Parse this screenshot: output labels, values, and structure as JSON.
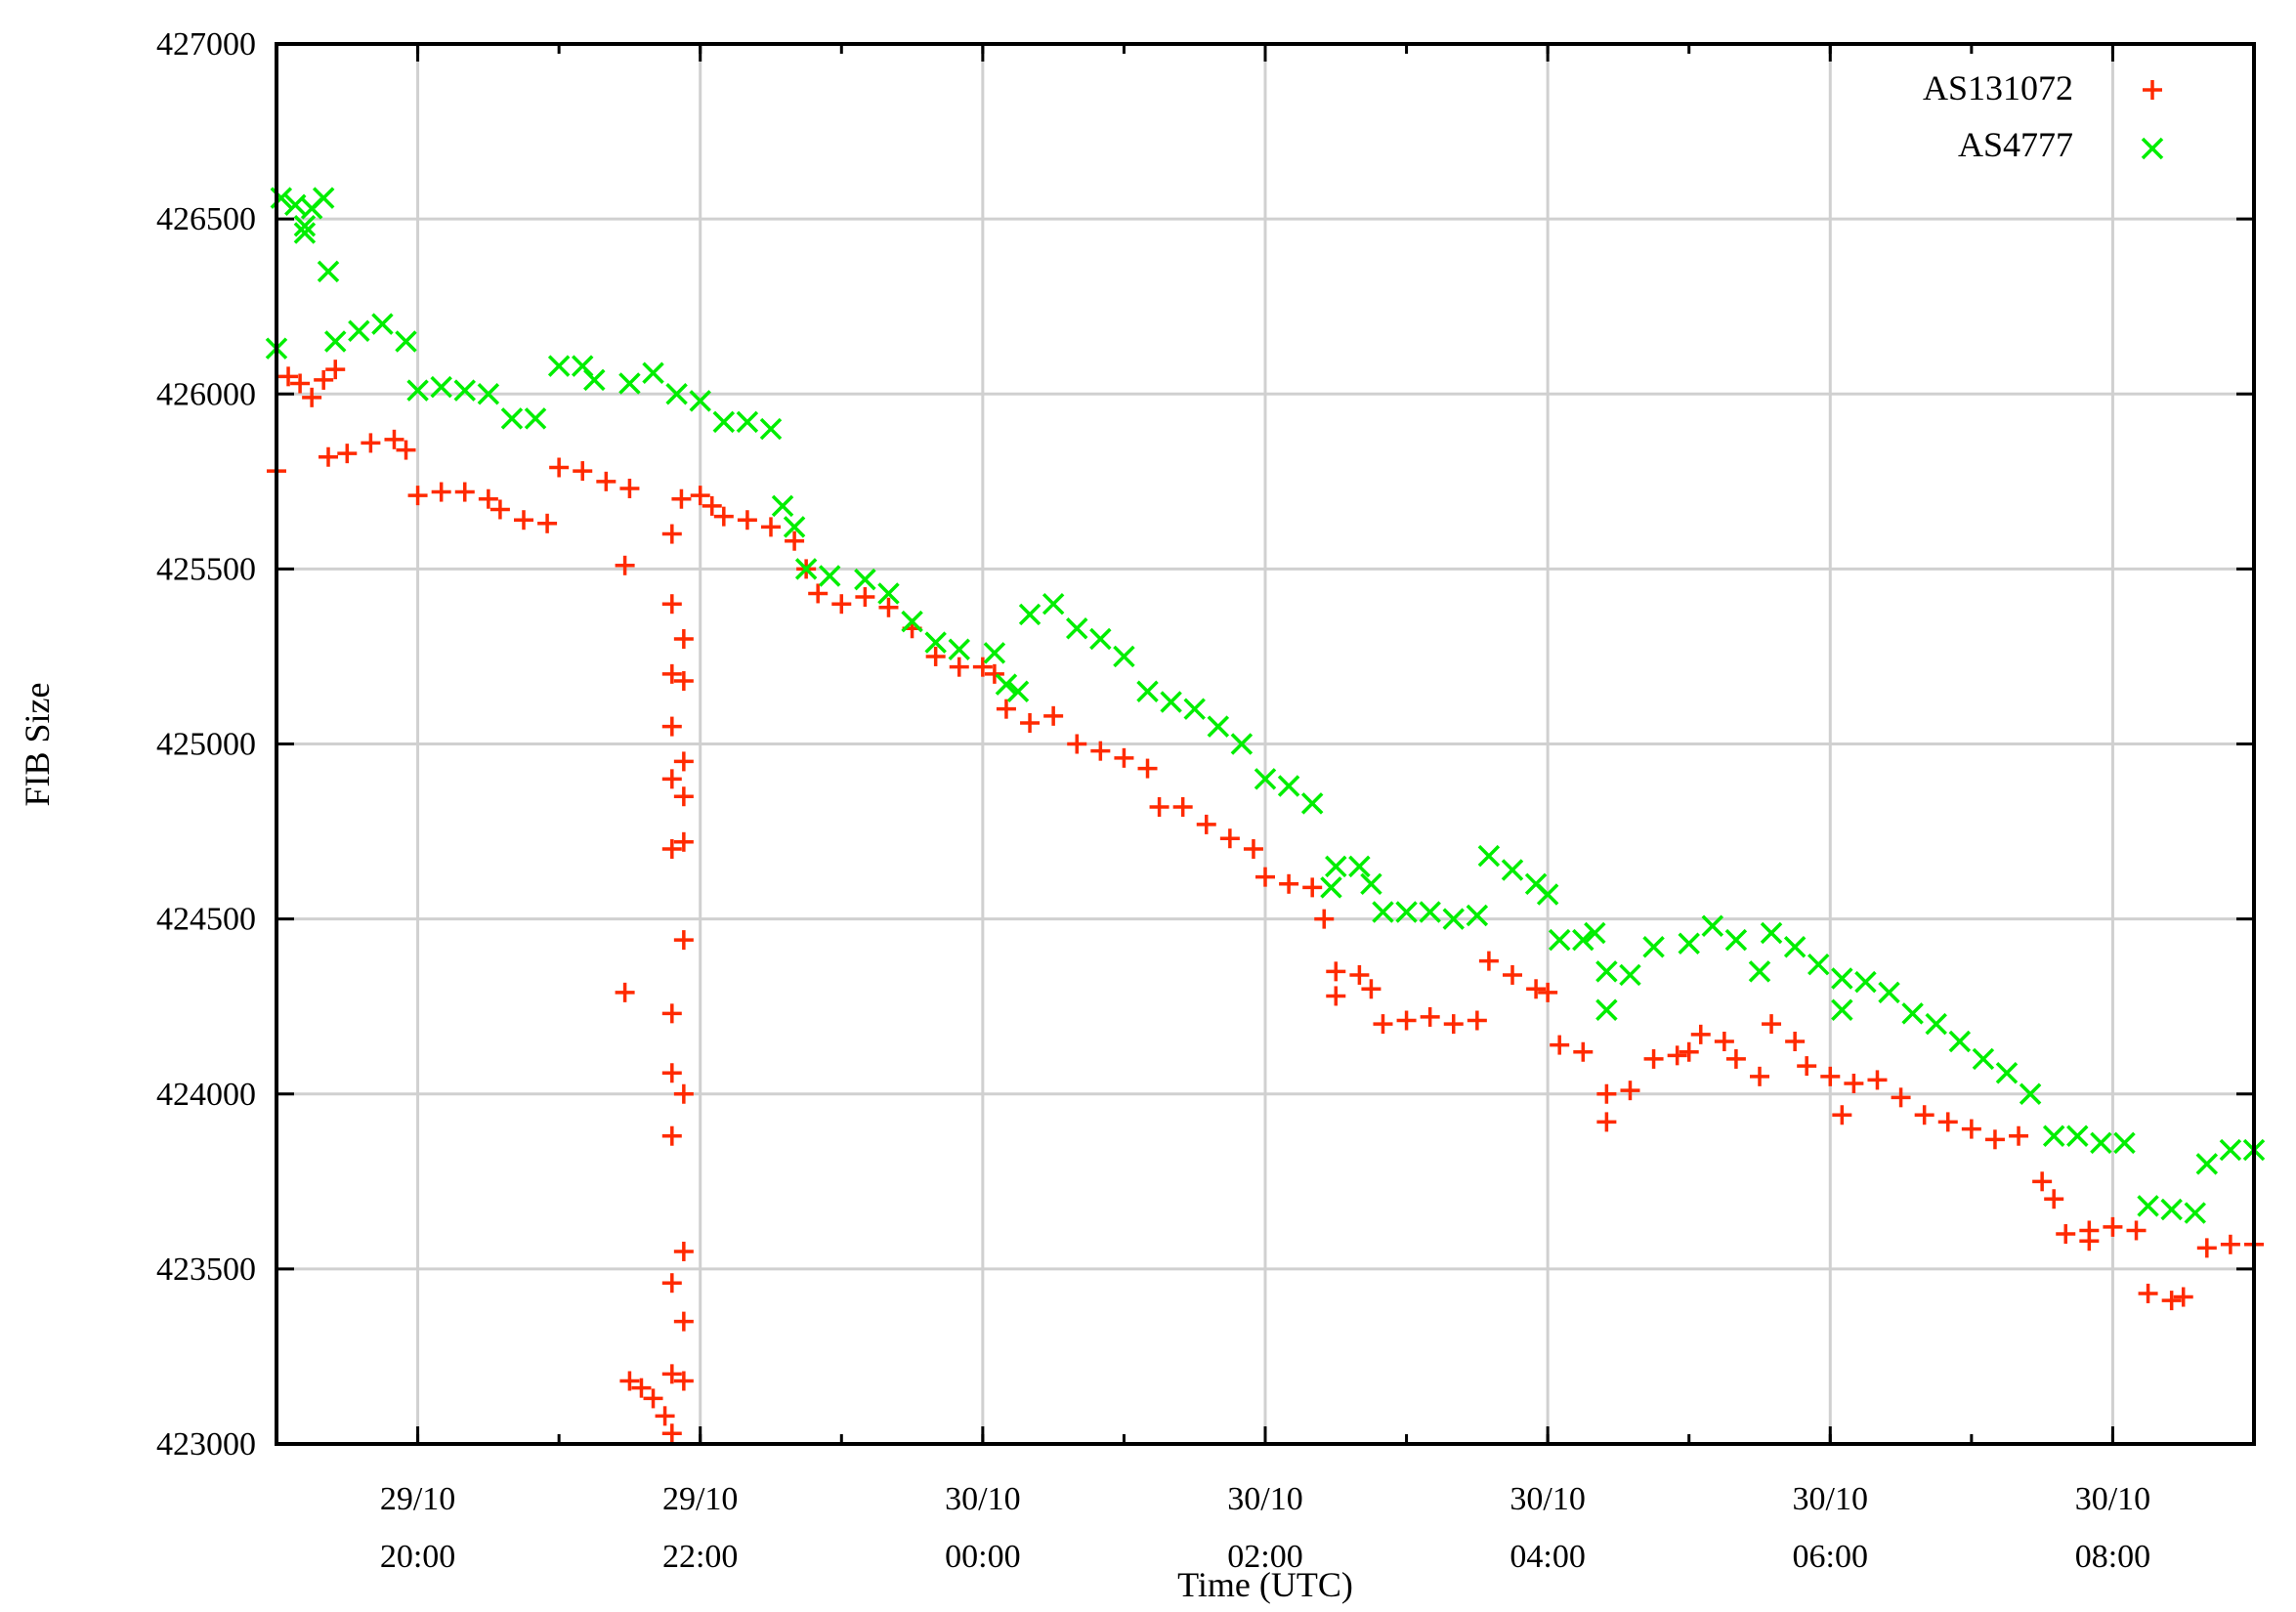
{
  "chart_data": {
    "type": "scatter",
    "title": "",
    "xlabel": "Time (UTC)",
    "ylabel": "FIB Size",
    "ylim": [
      423000,
      427000
    ],
    "xlim": [
      "29/10 19:00",
      "30/10 09:00"
    ],
    "grid": true,
    "legend_position": "top-right",
    "yticks": [
      "423000",
      "423500",
      "424000",
      "424500",
      "425000",
      "425500",
      "426000",
      "426500",
      "427000"
    ],
    "xticks": [
      {
        "t": "29/10 20:00",
        "line1": "29/10",
        "line2": "20:00"
      },
      {
        "t": "29/10 22:00",
        "line1": "29/10",
        "line2": "22:00"
      },
      {
        "t": "30/10 00:00",
        "line1": "30/10",
        "line2": "00:00"
      },
      {
        "t": "30/10 02:00",
        "line1": "30/10",
        "line2": "02:00"
      },
      {
        "t": "30/10 04:00",
        "line1": "30/10",
        "line2": "04:00"
      },
      {
        "t": "30/10 06:00",
        "line1": "30/10",
        "line2": "06:00"
      },
      {
        "t": "30/10 08:00",
        "line1": "30/10",
        "line2": "08:00"
      }
    ],
    "series": [
      {
        "name": "AS131072",
        "marker": "plus",
        "color": "#ff2a00",
        "points": [
          [
            "29/10 19:00",
            425780
          ],
          [
            "29/10 19:05",
            426050
          ],
          [
            "29/10 19:10",
            426030
          ],
          [
            "29/10 19:15",
            425990
          ],
          [
            "29/10 19:20",
            426040
          ],
          [
            "29/10 19:25",
            426070
          ],
          [
            "29/10 19:22",
            425820
          ],
          [
            "29/10 19:30",
            425830
          ],
          [
            "29/10 19:40",
            425860
          ],
          [
            "29/10 19:50",
            425870
          ],
          [
            "29/10 19:55",
            425840
          ],
          [
            "29/10 20:00",
            425710
          ],
          [
            "29/10 20:10",
            425720
          ],
          [
            "29/10 20:20",
            425720
          ],
          [
            "29/10 20:30",
            425700
          ],
          [
            "29/10 20:35",
            425670
          ],
          [
            "29/10 20:45",
            425640
          ],
          [
            "29/10 20:55",
            425630
          ],
          [
            "29/10 21:00",
            425790
          ],
          [
            "29/10 21:10",
            425780
          ],
          [
            "29/10 21:20",
            425750
          ],
          [
            "29/10 21:30",
            425730
          ],
          [
            "29/10 21:28",
            425510
          ],
          [
            "29/10 21:28",
            424290
          ],
          [
            "29/10 21:30",
            423180
          ],
          [
            "29/10 21:35",
            423160
          ],
          [
            "29/10 21:40",
            423130
          ],
          [
            "29/10 21:45",
            423080
          ],
          [
            "29/10 21:48",
            423030
          ],
          [
            "29/10 21:48",
            423200
          ],
          [
            "29/10 21:48",
            423460
          ],
          [
            "29/10 21:48",
            423880
          ],
          [
            "29/10 21:48",
            424060
          ],
          [
            "29/10 21:48",
            424230
          ],
          [
            "29/10 21:48",
            424700
          ],
          [
            "29/10 21:48",
            424900
          ],
          [
            "29/10 21:48",
            425050
          ],
          [
            "29/10 21:48",
            425200
          ],
          [
            "29/10 21:48",
            425400
          ],
          [
            "29/10 21:48",
            425600
          ],
          [
            "29/10 21:53",
            423180
          ],
          [
            "29/10 21:53",
            423350
          ],
          [
            "29/10 21:53",
            423550
          ],
          [
            "29/10 21:53",
            424000
          ],
          [
            "29/10 21:53",
            424440
          ],
          [
            "29/10 21:53",
            424720
          ],
          [
            "29/10 21:53",
            424850
          ],
          [
            "29/10 21:53",
            424950
          ],
          [
            "29/10 21:53",
            425180
          ],
          [
            "29/10 21:53",
            425300
          ],
          [
            "29/10 21:52",
            425700
          ],
          [
            "29/10 22:00",
            425710
          ],
          [
            "29/10 22:05",
            425680
          ],
          [
            "29/10 22:10",
            425650
          ],
          [
            "29/10 22:20",
            425640
          ],
          [
            "29/10 22:30",
            425620
          ],
          [
            "29/10 22:40",
            425580
          ],
          [
            "29/10 22:45",
            425500
          ],
          [
            "29/10 22:50",
            425430
          ],
          [
            "29/10 23:00",
            425400
          ],
          [
            "29/10 23:10",
            425420
          ],
          [
            "29/10 23:20",
            425390
          ],
          [
            "29/10 23:30",
            425330
          ],
          [
            "29/10 23:40",
            425250
          ],
          [
            "29/10 23:50",
            425220
          ],
          [
            "30/10 00:00",
            425220
          ],
          [
            "30/10 00:05",
            425200
          ],
          [
            "30/10 00:10",
            425100
          ],
          [
            "30/10 00:20",
            425060
          ],
          [
            "30/10 00:30",
            425080
          ],
          [
            "30/10 00:40",
            425000
          ],
          [
            "30/10 00:50",
            424980
          ],
          [
            "30/10 01:00",
            424960
          ],
          [
            "30/10 01:10",
            424930
          ],
          [
            "30/10 01:15",
            424820
          ],
          [
            "30/10 01:25",
            424820
          ],
          [
            "30/10 01:35",
            424770
          ],
          [
            "30/10 01:45",
            424730
          ],
          [
            "30/10 01:55",
            424700
          ],
          [
            "30/10 02:00",
            424620
          ],
          [
            "30/10 02:10",
            424600
          ],
          [
            "30/10 02:20",
            424590
          ],
          [
            "30/10 02:25",
            424500
          ],
          [
            "30/10 02:30",
            424350
          ],
          [
            "30/10 02:30",
            424280
          ],
          [
            "30/10 02:40",
            424340
          ],
          [
            "30/10 02:45",
            424300
          ],
          [
            "30/10 02:50",
            424200
          ],
          [
            "30/10 03:00",
            424210
          ],
          [
            "30/10 03:10",
            424220
          ],
          [
            "30/10 03:20",
            424200
          ],
          [
            "30/10 03:30",
            424210
          ],
          [
            "30/10 03:35",
            424380
          ],
          [
            "30/10 03:45",
            424340
          ],
          [
            "30/10 03:55",
            424300
          ],
          [
            "30/10 04:00",
            424290
          ],
          [
            "30/10 04:05",
            424140
          ],
          [
            "30/10 04:15",
            424120
          ],
          [
            "30/10 04:25",
            424000
          ],
          [
            "30/10 04:25",
            423920
          ],
          [
            "30/10 04:35",
            424010
          ],
          [
            "30/10 04:45",
            424100
          ],
          [
            "30/10 04:55",
            424110
          ],
          [
            "30/10 05:00",
            424120
          ],
          [
            "30/10 05:05",
            424170
          ],
          [
            "30/10 05:15",
            424150
          ],
          [
            "30/10 05:20",
            424100
          ],
          [
            "30/10 05:30",
            424050
          ],
          [
            "30/10 05:35",
            424200
          ],
          [
            "30/10 05:45",
            424150
          ],
          [
            "30/10 05:50",
            424080
          ],
          [
            "30/10 06:00",
            424050
          ],
          [
            "30/10 06:05",
            423940
          ],
          [
            "30/10 06:10",
            424030
          ],
          [
            "30/10 06:20",
            424040
          ],
          [
            "30/10 06:30",
            423990
          ],
          [
            "30/10 06:40",
            423940
          ],
          [
            "30/10 06:50",
            423920
          ],
          [
            "30/10 07:00",
            423900
          ],
          [
            "30/10 07:10",
            423870
          ],
          [
            "30/10 07:20",
            423880
          ],
          [
            "30/10 07:30",
            423750
          ],
          [
            "30/10 07:35",
            423700
          ],
          [
            "30/10 07:40",
            423600
          ],
          [
            "30/10 07:50",
            423610
          ],
          [
            "30/10 07:50",
            423580
          ],
          [
            "30/10 08:00",
            423620
          ],
          [
            "30/10 08:10",
            423610
          ],
          [
            "30/10 08:15",
            423430
          ],
          [
            "30/10 08:25",
            423410
          ],
          [
            "30/10 08:30",
            423420
          ],
          [
            "30/10 08:40",
            423560
          ],
          [
            "30/10 08:50",
            423570
          ],
          [
            "30/10 09:00",
            423570
          ]
        ]
      },
      {
        "name": "AS4777",
        "marker": "cross",
        "color": "#00ee00",
        "points": [
          [
            "29/10 19:00",
            426130
          ],
          [
            "29/10 19:02",
            426560
          ],
          [
            "29/10 19:08",
            426540
          ],
          [
            "29/10 19:12",
            426480
          ],
          [
            "29/10 19:12",
            426460
          ],
          [
            "29/10 19:15",
            426530
          ],
          [
            "29/10 19:20",
            426560
          ],
          [
            "29/10 19:22",
            426350
          ],
          [
            "29/10 19:25",
            426150
          ],
          [
            "29/10 19:35",
            426180
          ],
          [
            "29/10 19:45",
            426200
          ],
          [
            "29/10 19:55",
            426150
          ],
          [
            "29/10 20:00",
            426010
          ],
          [
            "29/10 20:10",
            426020
          ],
          [
            "29/10 20:20",
            426010
          ],
          [
            "29/10 20:30",
            426000
          ],
          [
            "29/10 20:40",
            425930
          ],
          [
            "29/10 20:50",
            425930
          ],
          [
            "29/10 21:00",
            426080
          ],
          [
            "29/10 21:10",
            426080
          ],
          [
            "29/10 21:15",
            426040
          ],
          [
            "29/10 21:30",
            426030
          ],
          [
            "29/10 21:40",
            426060
          ],
          [
            "29/10 21:50",
            426000
          ],
          [
            "29/10 22:00",
            425980
          ],
          [
            "29/10 22:10",
            425920
          ],
          [
            "29/10 22:20",
            425920
          ],
          [
            "29/10 22:30",
            425900
          ],
          [
            "29/10 22:35",
            425680
          ],
          [
            "29/10 22:40",
            425620
          ],
          [
            "29/10 22:45",
            425500
          ],
          [
            "29/10 22:55",
            425480
          ],
          [
            "29/10 23:10",
            425470
          ],
          [
            "29/10 23:20",
            425430
          ],
          [
            "29/10 23:30",
            425350
          ],
          [
            "29/10 23:40",
            425290
          ],
          [
            "29/10 23:50",
            425270
          ],
          [
            "30/10 00:05",
            425260
          ],
          [
            "30/10 00:10",
            425170
          ],
          [
            "30/10 00:15",
            425150
          ],
          [
            "30/10 00:20",
            425370
          ],
          [
            "30/10 00:30",
            425400
          ],
          [
            "30/10 00:40",
            425330
          ],
          [
            "30/10 00:50",
            425300
          ],
          [
            "30/10 01:00",
            425250
          ],
          [
            "30/10 01:10",
            425150
          ],
          [
            "30/10 01:20",
            425120
          ],
          [
            "30/10 01:30",
            425100
          ],
          [
            "30/10 01:40",
            425050
          ],
          [
            "30/10 01:50",
            425000
          ],
          [
            "30/10 02:00",
            424900
          ],
          [
            "30/10 02:10",
            424880
          ],
          [
            "30/10 02:20",
            424830
          ],
          [
            "30/10 02:28",
            424590
          ],
          [
            "30/10 02:30",
            424650
          ],
          [
            "30/10 02:40",
            424650
          ],
          [
            "30/10 02:45",
            424600
          ],
          [
            "30/10 02:50",
            424520
          ],
          [
            "30/10 03:00",
            424520
          ],
          [
            "30/10 03:10",
            424520
          ],
          [
            "30/10 03:20",
            424500
          ],
          [
            "30/10 03:30",
            424510
          ],
          [
            "30/10 03:35",
            424680
          ],
          [
            "30/10 03:45",
            424640
          ],
          [
            "30/10 03:55",
            424600
          ],
          [
            "30/10 04:00",
            424570
          ],
          [
            "30/10 04:05",
            424440
          ],
          [
            "30/10 04:15",
            424440
          ],
          [
            "30/10 04:20",
            424460
          ],
          [
            "30/10 04:25",
            424350
          ],
          [
            "30/10 04:25",
            424240
          ],
          [
            "30/10 04:35",
            424340
          ],
          [
            "30/10 04:45",
            424420
          ],
          [
            "30/10 05:00",
            424430
          ],
          [
            "30/10 05:10",
            424480
          ],
          [
            "30/10 05:20",
            424440
          ],
          [
            "30/10 05:30",
            424350
          ],
          [
            "30/10 05:35",
            424460
          ],
          [
            "30/10 05:45",
            424420
          ],
          [
            "30/10 05:55",
            424370
          ],
          [
            "30/10 06:05",
            424330
          ],
          [
            "30/10 06:05",
            424240
          ],
          [
            "30/10 06:15",
            424320
          ],
          [
            "30/10 06:25",
            424290
          ],
          [
            "30/10 06:35",
            424230
          ],
          [
            "30/10 06:45",
            424200
          ],
          [
            "30/10 06:55",
            424150
          ],
          [
            "30/10 07:05",
            424100
          ],
          [
            "30/10 07:15",
            424060
          ],
          [
            "30/10 07:25",
            424000
          ],
          [
            "30/10 07:35",
            423880
          ],
          [
            "30/10 07:45",
            423880
          ],
          [
            "30/10 07:55",
            423860
          ],
          [
            "30/10 08:05",
            423860
          ],
          [
            "30/10 08:15",
            423680
          ],
          [
            "30/10 08:25",
            423670
          ],
          [
            "30/10 08:35",
            423660
          ],
          [
            "30/10 08:40",
            423800
          ],
          [
            "30/10 08:50",
            423840
          ],
          [
            "30/10 09:00",
            423840
          ]
        ]
      }
    ]
  }
}
